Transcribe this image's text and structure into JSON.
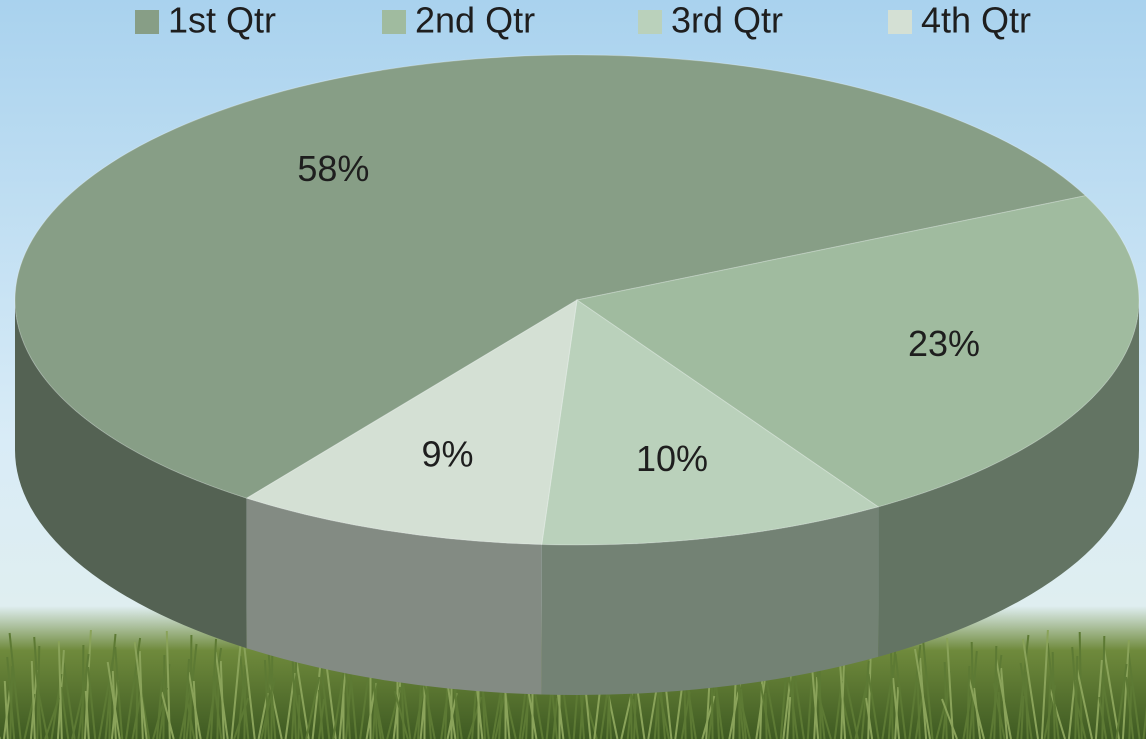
{
  "chart_data": {
    "type": "pie",
    "categories": [
      "1st Qtr",
      "2nd Qtr",
      "3rd Qtr",
      "4th Qtr"
    ],
    "values": [
      58,
      23,
      10,
      9
    ],
    "value_labels": [
      "58%",
      "23%",
      "10%",
      "9%"
    ],
    "colors": [
      "#879e86",
      "#a0bb9f",
      "#bad1bb",
      "#d4e0d4"
    ],
    "legend": "top"
  }
}
